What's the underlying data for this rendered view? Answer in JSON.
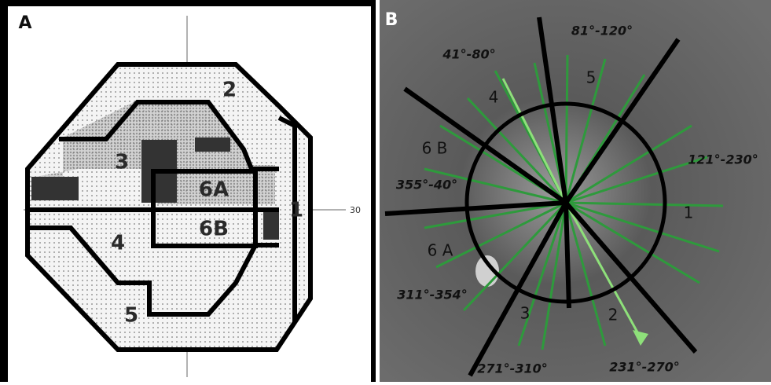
{
  "panel_a": {
    "label": "A",
    "axis_label": "30",
    "regions": [
      "1",
      "2",
      "3",
      "4",
      "5",
      "6A",
      "6B"
    ]
  },
  "panel_b": {
    "label": "B",
    "sectors": [
      "1",
      "2",
      "3",
      "4",
      "5",
      "6 A",
      "6 B"
    ],
    "angle_ranges": [
      "81°-120°",
      "41°-80°",
      "121°-230°",
      "355°-40°",
      "311°-354°",
      "271°-310°",
      "231°-270°"
    ]
  }
}
